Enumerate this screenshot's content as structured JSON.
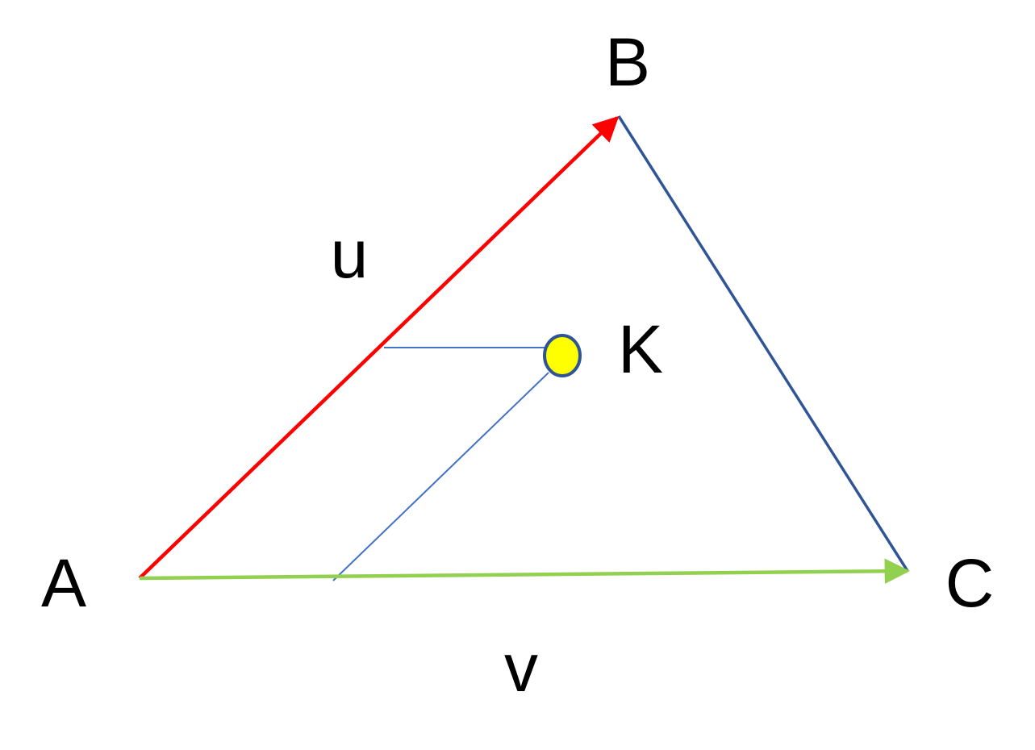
{
  "labels": {
    "A": "A",
    "B": "B",
    "C": "C",
    "K": "K",
    "u": "u",
    "v": "v"
  },
  "colors": {
    "vector_u": "#ff0000",
    "vector_v": "#92d050",
    "triangle_edge": "#2f5597",
    "construction_line": "#4472c4",
    "point_k_fill": "#ffff00",
    "point_k_stroke": "#2f5597",
    "text": "#000000"
  }
}
